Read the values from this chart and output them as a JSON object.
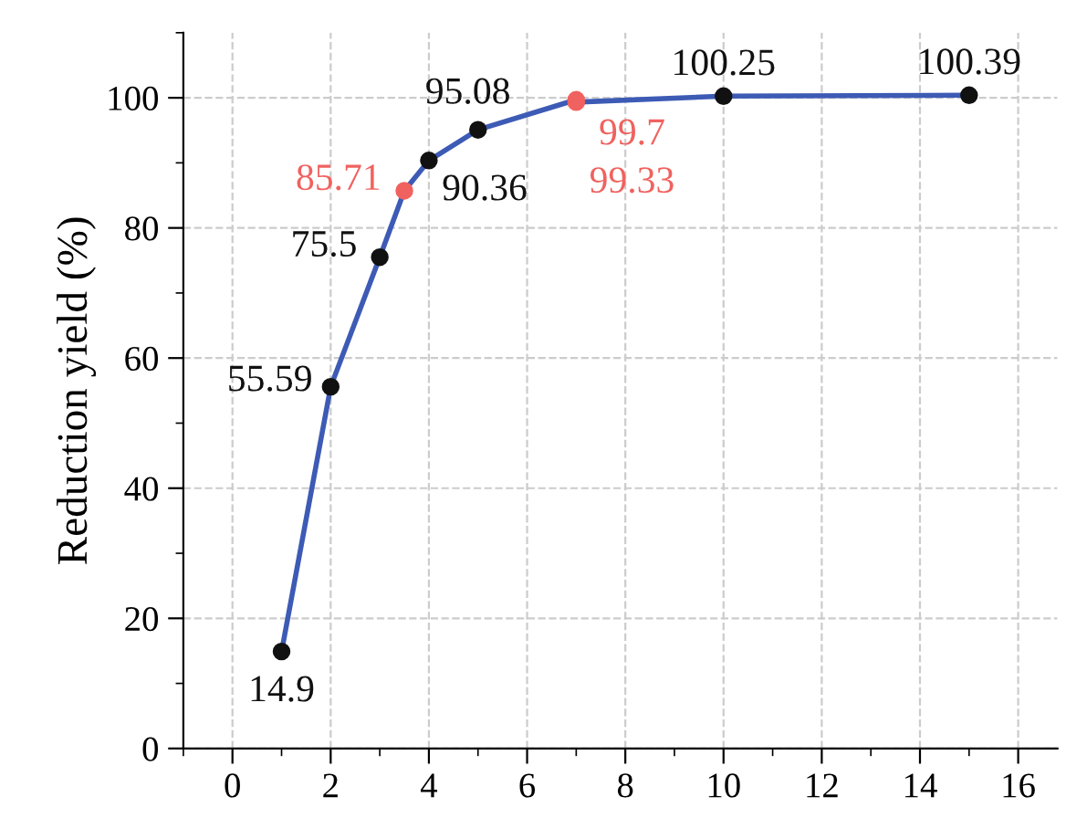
{
  "chart_data": {
    "type": "line",
    "ylabel": "Reduction yield (%)",
    "x": [
      1,
      2,
      3,
      3.5,
      4,
      5,
      7,
      7,
      10,
      15
    ],
    "series": [
      {
        "color": "#3d5bb5",
        "values": [
          14.9,
          55.59,
          75.5,
          85.71,
          90.36,
          95.08,
          99.7,
          99.33,
          100.25,
          100.39
        ],
        "colors": [
          "#111111",
          "#111111",
          "#111111",
          "#f0625f",
          "#111111",
          "#111111",
          "#f0625f",
          "#f0625f",
          "#111111",
          "#111111"
        ]
      }
    ],
    "data_labels": true,
    "marker": "circle",
    "line_style": "solid",
    "xlim": [
      -1,
      16.8
    ],
    "xticks": [
      0,
      2,
      4,
      6,
      8,
      10,
      12,
      14,
      16
    ],
    "ylim": [
      0,
      110
    ],
    "yticks": [
      0,
      20,
      40,
      60,
      80,
      100
    ],
    "grid": true
  }
}
